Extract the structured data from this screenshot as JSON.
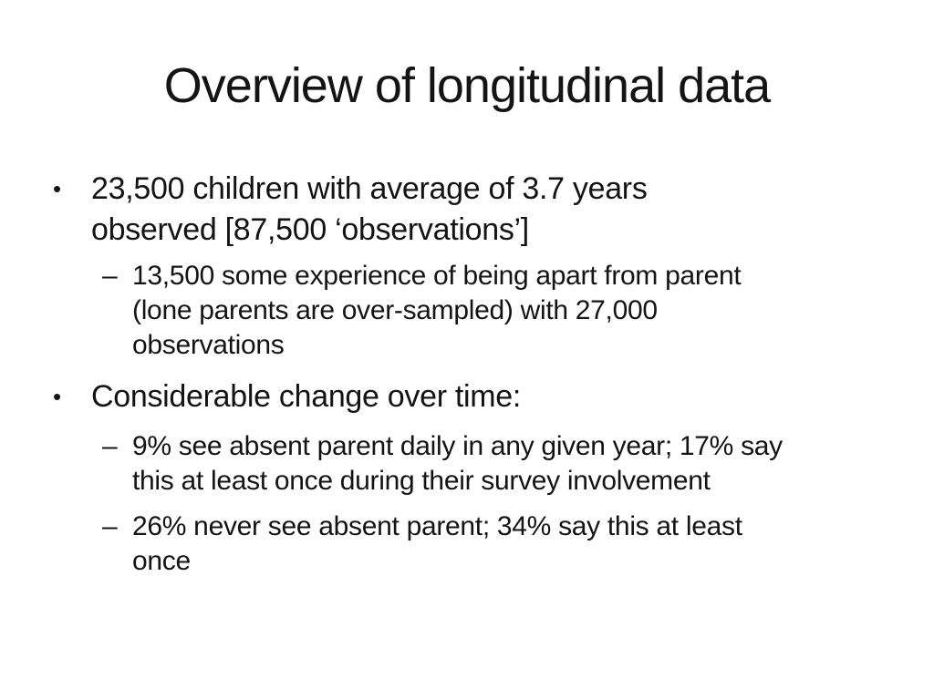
{
  "slide": {
    "title": "Overview of longitudinal data",
    "background_color": "#ffffff",
    "text_color": "#141414",
    "bullets": [
      {
        "level": 1,
        "marker": "•",
        "lines": [
          "23,500 children with average of 3.7 years",
          "observed [87,500 ‘observations’]"
        ]
      },
      {
        "level": 2,
        "marker": "–",
        "lines": [
          "13,500 some experience of being apart from parent",
          "(lone parents are over-sampled) with 27,000",
          "observations"
        ]
      },
      {
        "level": 1,
        "marker": "•",
        "lines": [
          "Considerable change over time:"
        ]
      },
      {
        "level": 2,
        "marker": "–",
        "lines": [
          "9% see absent parent daily in any given year; 17% say",
          "this at least once during their survey involvement"
        ]
      },
      {
        "level": 2,
        "marker": "–",
        "lines": [
          "26% never see absent parent; 34% say this at least",
          "once"
        ]
      }
    ]
  }
}
